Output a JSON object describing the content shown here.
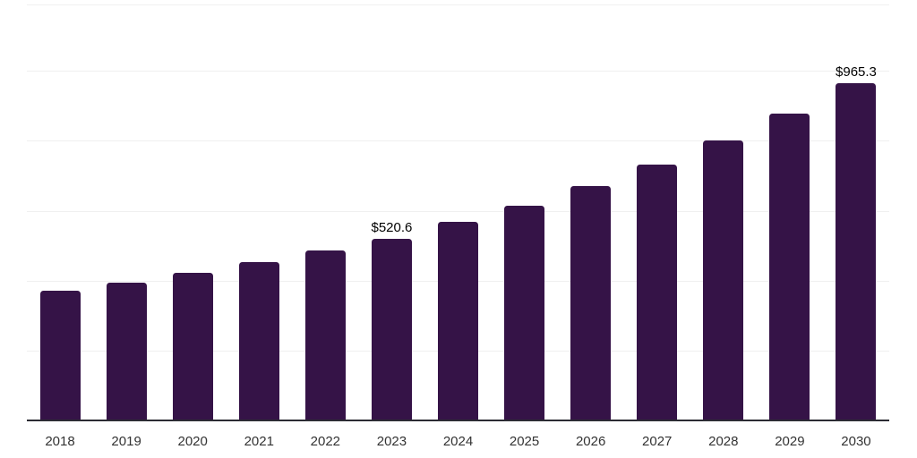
{
  "chart_data": {
    "type": "bar",
    "title": "",
    "xlabel": "",
    "ylabel": "",
    "categories": [
      "2018",
      "2019",
      "2020",
      "2021",
      "2022",
      "2023",
      "2024",
      "2025",
      "2026",
      "2027",
      "2028",
      "2029",
      "2030"
    ],
    "values": [
      371,
      394,
      422,
      452,
      485,
      520.6,
      567,
      615,
      671,
      732,
      800,
      879,
      965.3
    ],
    "annotations": [
      {
        "category": "2023",
        "text": "$520.6"
      },
      {
        "category": "2030",
        "text": "$965.3"
      }
    ],
    "ylim": [
      0,
      1190
    ],
    "gridline_step": 200,
    "grid": true,
    "legend": "none",
    "colors": {
      "bar": "#351347",
      "gridline": "#f0f0f0",
      "axis_line": "#2c2c34",
      "value_label": "#000000",
      "tick_label": "#333333",
      "background": "#ffffff"
    }
  }
}
